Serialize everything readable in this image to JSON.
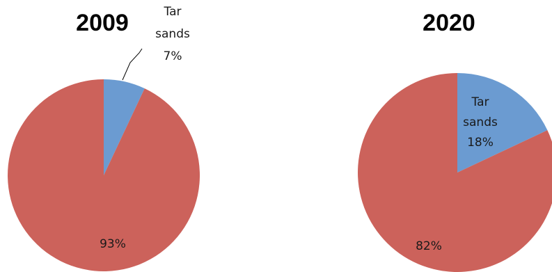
{
  "chart_data": [
    {
      "type": "pie",
      "title": "2009",
      "categories": [
        "Tar sands",
        ""
      ],
      "values": [
        7,
        93
      ],
      "value_labels": [
        "7%",
        "93%"
      ],
      "category_label_lines": [
        [
          "Tar",
          "sands"
        ],
        []
      ],
      "colors": [
        "#6b9bd1",
        "#cc625b"
      ],
      "leader_line": true
    },
    {
      "type": "pie",
      "title": "2020",
      "categories": [
        "Tar sands",
        ""
      ],
      "values": [
        18,
        82
      ],
      "value_labels": [
        "18%",
        "82%"
      ],
      "category_label_lines": [
        [
          "Tar",
          "sands"
        ],
        []
      ],
      "colors": [
        "#6b9bd1",
        "#cc625b"
      ],
      "leader_line": false
    }
  ]
}
